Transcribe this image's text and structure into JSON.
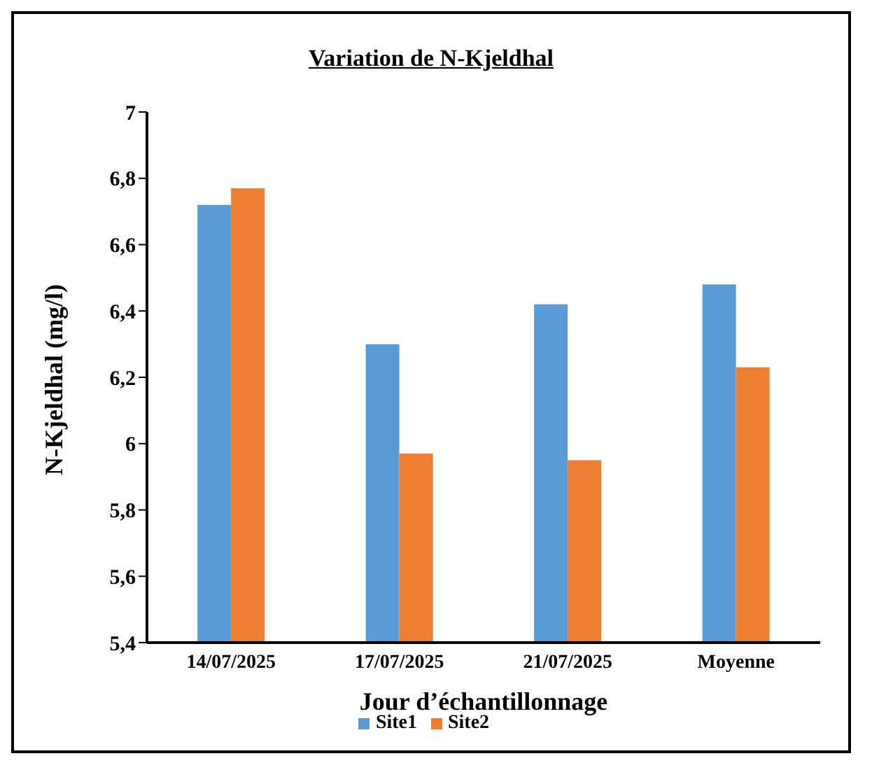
{
  "chart_data": {
    "type": "bar",
    "title": "Variation de N-Kjeldhal",
    "xlabel": "Jour d’échantillonnage",
    "ylabel": "N-Kjeldhal  (mg/l)",
    "categories": [
      "14/07/2025",
      "17/07/2025",
      "21/07/2025",
      "Moyenne"
    ],
    "series": [
      {
        "name": "Site1",
        "color": "#5b9bd5",
        "values": [
          6.72,
          6.3,
          6.42,
          6.48
        ]
      },
      {
        "name": "Site2",
        "color": "#ed7d31",
        "values": [
          6.77,
          5.97,
          5.95,
          6.23
        ]
      }
    ],
    "ylim": [
      5.4,
      7
    ],
    "yticks": [
      {
        "value": 5.4,
        "label": "5,4"
      },
      {
        "value": 5.6,
        "label": "5,6"
      },
      {
        "value": 5.8,
        "label": "5,8"
      },
      {
        "value": 6,
        "label": "6"
      },
      {
        "value": 6.2,
        "label": "6,2"
      },
      {
        "value": 6.4,
        "label": "6,4"
      },
      {
        "value": 6.6,
        "label": "6,6"
      },
      {
        "value": 6.8,
        "label": "6,8"
      },
      {
        "value": 7,
        "label": "7"
      }
    ],
    "grid": false,
    "legend": "bottom"
  }
}
